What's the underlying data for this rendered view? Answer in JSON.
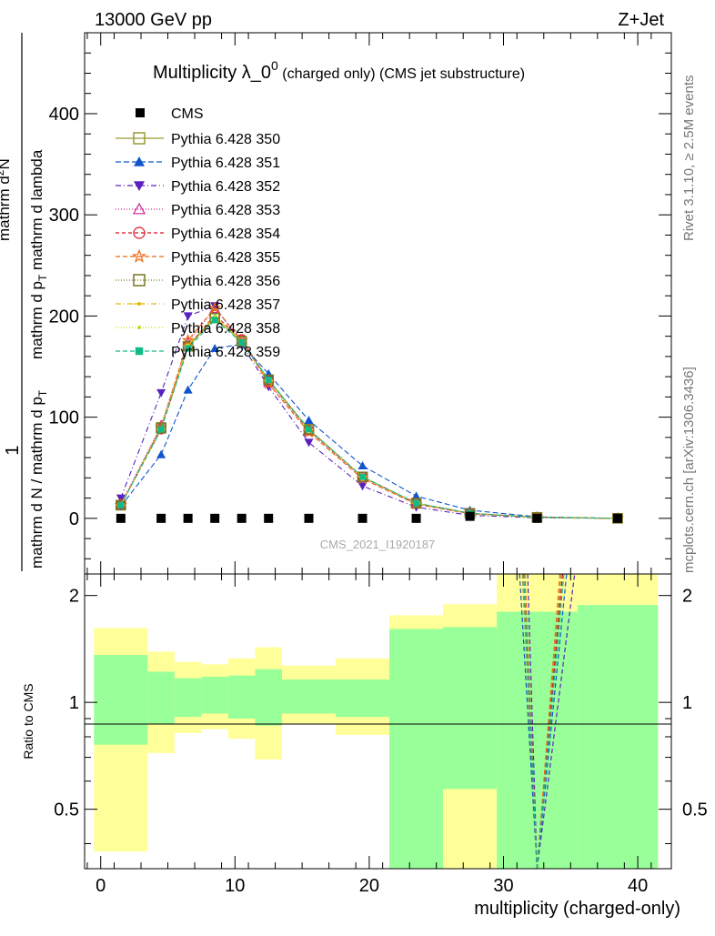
{
  "header": {
    "left": "13000 GeV pp",
    "right": "Z+Jet"
  },
  "side_labels": {
    "rivet": "Rivet 3.1.10, ≥ 2.5M events",
    "mcplots": "mcplots.cern.ch [arXiv:1306.3436]"
  },
  "title": {
    "main": "Multiplicity λ_0",
    "sup": "0",
    "sub": " (charged only) (CMS jet substructure)"
  },
  "watermark": "CMS_2021_I1920187",
  "ylabel_main": {
    "one": "1",
    "denominator": "mathrm d N / mathrm d p",
    "denominator_sub": "T",
    "numerator": "mathrm d",
    "numerator_sup": "2",
    "numerator_rest": "N",
    "rest": "mathrm d p",
    "rest_sub": "T",
    "rest2": " mathrm d lambda"
  },
  "ylabel_ratio": "Ratio to CMS",
  "xlabel": "multiplicity (charged-only)",
  "chart_data": {
    "type": "line",
    "xlim": [
      -1.2,
      42.5
    ],
    "ylim": [
      -55,
      480
    ],
    "yticks": [
      0,
      100,
      200,
      300,
      400
    ],
    "xticks": [
      0,
      10,
      20,
      30,
      40
    ],
    "ratio_ylim_log": [
      0.34,
      2.3
    ],
    "ratio_yticks": [
      0.5,
      1,
      2
    ],
    "x": [
      1.5,
      4.5,
      6.5,
      8.5,
      10.5,
      12.5,
      15.5,
      19.5,
      23.5,
      27.5,
      32.5,
      38.5
    ],
    "cms": [
      0,
      0,
      0,
      0,
      0,
      0,
      0,
      0,
      0,
      2,
      0,
      0
    ],
    "series": [
      {
        "name": "Pythia 6.428 350",
        "color": "#9a9a33",
        "marker": "square-open",
        "dash": "",
        "values": [
          13,
          90,
          170,
          198,
          175,
          137,
          88,
          41,
          15,
          5,
          1,
          0
        ]
      },
      {
        "name": "Pythia 6.428 351",
        "color": "#1155cc",
        "marker": "triangle-up",
        "dash": "6,3",
        "values": [
          12,
          63,
          127,
          168,
          172,
          143,
          97,
          52,
          22,
          8,
          1.5,
          0
        ]
      },
      {
        "name": "Pythia 6.428 352",
        "color": "#5a20c0",
        "marker": "triangle-down",
        "dash": "6,3,1,3",
        "values": [
          20,
          124,
          200,
          210,
          172,
          130,
          75,
          32,
          11,
          3,
          0.5,
          0
        ]
      },
      {
        "name": "Pythia 6.428 353",
        "color": "#cc2299",
        "marker": "triangle-open",
        "dash": "1,2",
        "values": [
          14,
          92,
          174,
          207,
          177,
          134,
          86,
          40,
          14,
          4.5,
          1,
          0
        ]
      },
      {
        "name": "Pythia 6.428 354",
        "color": "#dd1122",
        "marker": "circle-open",
        "dash": "4,3",
        "values": [
          13,
          88,
          170,
          201,
          177,
          136,
          87,
          41,
          15,
          5,
          1,
          0
        ]
      },
      {
        "name": "Pythia 6.428 355",
        "color": "#ee6611",
        "marker": "star-open",
        "dash": "5,3",
        "values": [
          13,
          90,
          176,
          208,
          176,
          133,
          85,
          39,
          14,
          4.5,
          1,
          0
        ]
      },
      {
        "name": "Pythia 6.428 356",
        "color": "#777722",
        "marker": "square-open",
        "dash": "1,2",
        "values": [
          13,
          89,
          170,
          198,
          175,
          137,
          88,
          41,
          15,
          5,
          1,
          0
        ]
      },
      {
        "name": "Pythia 6.428 357",
        "color": "#ddbb11",
        "marker": "dot-cross",
        "dash": "6,3,1,3",
        "values": [
          13,
          89,
          171,
          199,
          175,
          136,
          88,
          41,
          15,
          5,
          1,
          0
        ]
      },
      {
        "name": "Pythia 6.428 358",
        "color": "#bbdd22",
        "marker": "small-dot",
        "dash": "1,2",
        "values": [
          13,
          89,
          171,
          200,
          175,
          136,
          87,
          41,
          15,
          5,
          1,
          0
        ]
      },
      {
        "name": "Pythia 6.428 359",
        "color": "#11bb88",
        "marker": "square",
        "dash": "5,3",
        "values": [
          13,
          88,
          168,
          196,
          174,
          137,
          88,
          41,
          15,
          5,
          1,
          0
        ]
      }
    ],
    "ratio_bands": {
      "bins": [
        [
          -0.5,
          3.5
        ],
        [
          3.5,
          5.5
        ],
        [
          5.5,
          7.5
        ],
        [
          7.5,
          9.5
        ],
        [
          9.5,
          11.5
        ],
        [
          11.5,
          13.5
        ],
        [
          13.5,
          17.5
        ],
        [
          17.5,
          21.5
        ],
        [
          21.5,
          25.5
        ],
        [
          25.5,
          29.5
        ],
        [
          29.5,
          35.5
        ],
        [
          35.5,
          41.5
        ]
      ],
      "yellow_lo": [
        0.38,
        0.72,
        0.82,
        0.84,
        0.79,
        0.69,
        0.87,
        0.81,
        0.0,
        0.0,
        0.0,
        0.0
      ],
      "yellow_hi": [
        1.62,
        1.39,
        1.3,
        1.28,
        1.33,
        1.43,
        1.27,
        1.33,
        1.76,
        1.89,
        3.0,
        3.0
      ],
      "green_lo": [
        0.76,
        0.87,
        0.91,
        0.93,
        0.9,
        0.86,
        0.93,
        0.91,
        0.0,
        0.57,
        0.0,
        0.0
      ],
      "green_hi": [
        1.36,
        1.22,
        1.17,
        1.18,
        1.19,
        1.24,
        1.16,
        1.16,
        1.61,
        1.63,
        1.8,
        1.88
      ]
    },
    "ratio_spikes": [
      {
        "color": "#9a9a33",
        "x_low": 31.4,
        "x_high": 34.3
      },
      {
        "color": "#1155cc",
        "x_low": 31.2,
        "x_high": 34.7
      },
      {
        "color": "#5a20c0",
        "x_low": 31.8,
        "x_high": 35.3
      },
      {
        "color": "#dd1122",
        "x_low": 31.5,
        "x_high": 34.4
      },
      {
        "color": "#ee6611",
        "x_low": 31.6,
        "x_high": 34.2
      },
      {
        "color": "#11bb88",
        "x_low": 31.5,
        "x_high": 34.5
      }
    ]
  }
}
